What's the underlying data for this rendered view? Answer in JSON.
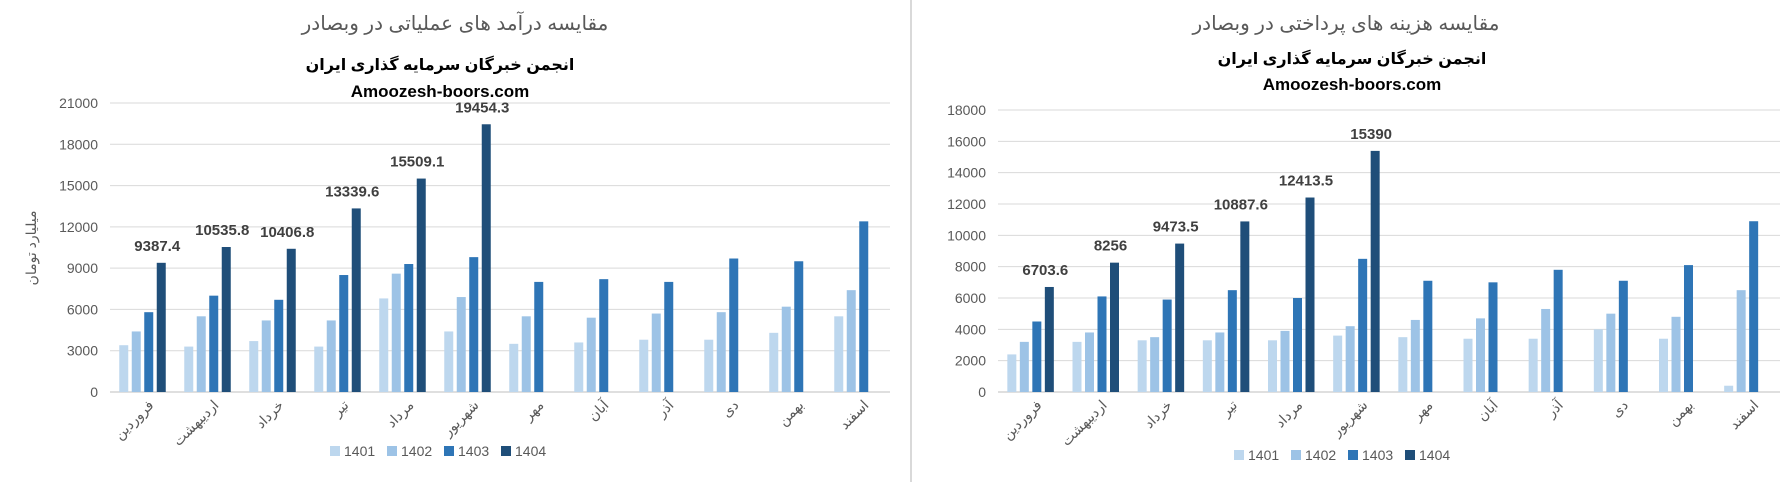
{
  "chart_data": [
    {
      "type": "bar",
      "title": "مقایسه درآمد های عملیاتی در وبصادر",
      "subtitle": "انجمن خبرگان سرمایه گذاری ایران",
      "watermark": "Amoozesh-boors.com",
      "xlabel": "",
      "ylabel": "میلیارد تومان",
      "ylim": [
        0,
        21000
      ],
      "yticks": [
        0,
        3000,
        6000,
        9000,
        12000,
        15000,
        18000,
        21000
      ],
      "grid": true,
      "legend_position": "bottom",
      "categories": [
        "فروردین",
        "اردیبهشت",
        "خرداد",
        "تیر",
        "مرداد",
        "شهریور",
        "مهر",
        "آبان",
        "آذر",
        "دی",
        "بهمن",
        "اسفند"
      ],
      "series": [
        {
          "name": "1401",
          "color": "#bdd7ee",
          "values": [
            3400,
            3300,
            3700,
            3300,
            6800,
            4400,
            3500,
            3600,
            3800,
            3800,
            4300,
            5500
          ]
        },
        {
          "name": "1402",
          "color": "#9dc3e6",
          "values": [
            4400,
            5500,
            5200,
            5200,
            8600,
            6900,
            5500,
            5400,
            5700,
            5800,
            6200,
            7400
          ]
        },
        {
          "name": "1403",
          "color": "#2e75b6",
          "values": [
            5800,
            7000,
            6700,
            8500,
            9300,
            9800,
            8000,
            8200,
            8000,
            9700,
            9500,
            12400
          ]
        },
        {
          "name": "1404",
          "color": "#1f4e79",
          "values": [
            9387.4,
            10535.8,
            10406.8,
            13339.6,
            15509.1,
            19454.3,
            null,
            null,
            null,
            null,
            null,
            null
          ]
        }
      ],
      "data_labels": [
        "9387.4",
        "10535.8",
        "10406.8",
        "13339.6",
        "15509.1",
        "19454.3"
      ]
    },
    {
      "type": "bar",
      "title": "مقایسه هزینه های پرداختی در وبصادر",
      "subtitle": "انجمن خبرگان سرمایه گذاری ایران",
      "watermark": "Amoozesh-boors.com",
      "xlabel": "",
      "ylabel": "",
      "ylim": [
        0,
        18000
      ],
      "yticks": [
        0,
        2000,
        4000,
        6000,
        8000,
        10000,
        12000,
        14000,
        16000,
        18000
      ],
      "grid": true,
      "legend_position": "bottom",
      "categories": [
        "فروردین",
        "اردیبهشت",
        "خرداد",
        "تیر",
        "مرداد",
        "شهریور",
        "مهر",
        "آبان",
        "آذر",
        "دی",
        "بهمن",
        "اسفند"
      ],
      "series": [
        {
          "name": "1401",
          "color": "#bdd7ee",
          "values": [
            2400,
            3200,
            3300,
            3300,
            3300,
            3600,
            3500,
            3400,
            3400,
            4000,
            3400,
            400
          ]
        },
        {
          "name": "1402",
          "color": "#9dc3e6",
          "values": [
            3200,
            3800,
            3500,
            3800,
            3900,
            4200,
            4600,
            4700,
            5300,
            5000,
            4800,
            6500
          ]
        },
        {
          "name": "1403",
          "color": "#2e75b6",
          "values": [
            4500,
            6100,
            5900,
            6500,
            6000,
            8500,
            7100,
            7000,
            7800,
            7100,
            8100,
            10900
          ]
        },
        {
          "name": "1404",
          "color": "#1f4e79",
          "values": [
            6703.6,
            8256,
            9473.5,
            10887.6,
            12413.5,
            15390,
            null,
            null,
            null,
            null,
            null,
            null
          ]
        }
      ],
      "data_labels": [
        "6703.6",
        "8256",
        "9473.5",
        "10887.6",
        "12413.5",
        "15390"
      ]
    }
  ]
}
